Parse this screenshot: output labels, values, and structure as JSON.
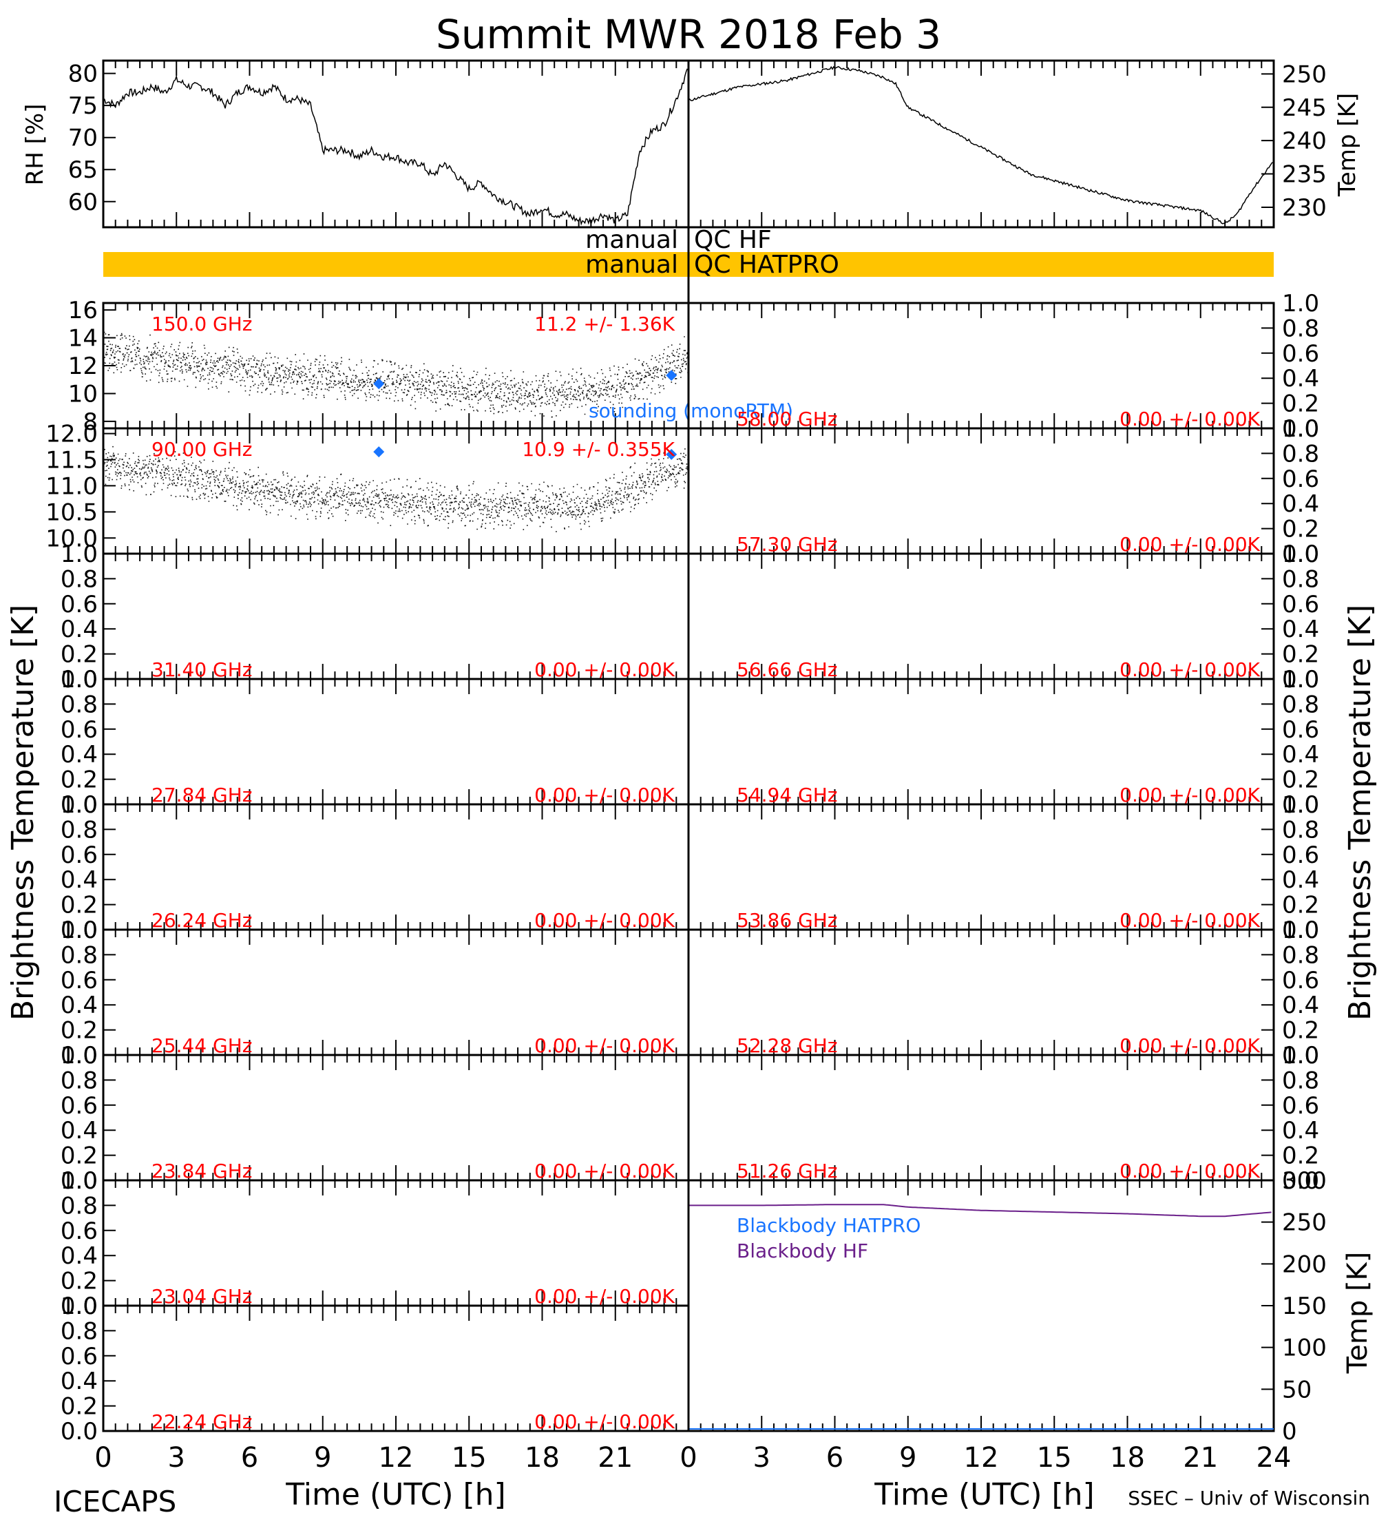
{
  "title": "Summit MWR 2018 Feb  3",
  "footer_left": "ICECAPS",
  "footer_right": "SSEC – Univ of Wisconsin",
  "xlabel": "Time (UTC) [h]",
  "x_ticks": [
    "0",
    "3",
    "6",
    "9",
    "12",
    "15",
    "18",
    "21",
    "24"
  ],
  "colors": {
    "channel_label": "#ff0000",
    "sounding": "#1874ff",
    "blackbody_hf": "#6a1f8a",
    "qc_bar": "#ffc400"
  },
  "qc": {
    "hf_label": "manual QC HF",
    "hatpro_label": "manual QC HATPRO"
  },
  "chart_data": [
    {
      "type": "line",
      "id": "rh",
      "ylabel": "RH [%]",
      "ylim": [
        56,
        82
      ],
      "y_ticks": [
        "60",
        "65",
        "70",
        "75",
        "80"
      ],
      "xlim": [
        0,
        24
      ],
      "series": [
        {
          "x": [
            0,
            0.5,
            1,
            1.5,
            2,
            2.5,
            3,
            3.5,
            4,
            4.5,
            5,
            5.5,
            6,
            6.5,
            7,
            7.5,
            8,
            8.5,
            9,
            9.5,
            10,
            10.5,
            11,
            11.5,
            12,
            12.5,
            13,
            13.5,
            14,
            14.5,
            15,
            15.5,
            16,
            16.5,
            17,
            17.5,
            18,
            18.5,
            19,
            19.5,
            20,
            20.5,
            21,
            21.5,
            22,
            22.5,
            23,
            23.5,
            24
          ],
          "y": [
            76,
            75,
            77,
            77,
            78,
            77,
            79,
            78,
            78,
            77,
            75,
            77,
            78,
            77,
            78,
            76,
            76,
            75,
            68,
            68,
            68,
            67,
            68,
            67,
            67,
            66,
            66,
            64,
            66,
            64,
            62,
            63,
            61,
            60,
            59,
            58,
            59,
            58,
            58,
            57,
            57,
            58,
            57,
            58,
            68,
            71,
            72,
            76,
            81
          ]
        }
      ]
    },
    {
      "type": "line",
      "id": "temp",
      "ylabel": "Temp [K]",
      "ylim": [
        227,
        252
      ],
      "y_ticks": [
        "230",
        "235",
        "240",
        "245",
        "250"
      ],
      "xlim": [
        0,
        24
      ],
      "series": [
        {
          "x": [
            0,
            1,
            2,
            3,
            4,
            5,
            5.5,
            6,
            7,
            8,
            8.5,
            9,
            10,
            11,
            12,
            13,
            14,
            15,
            16,
            17,
            18,
            19,
            20,
            21,
            21.5,
            22,
            22.5,
            23,
            24
          ],
          "y": [
            246,
            247,
            248,
            248.5,
            249,
            250,
            250.5,
            251,
            250.5,
            249.5,
            248.5,
            245,
            243,
            241,
            239,
            237,
            235,
            234,
            233,
            232,
            231,
            230.5,
            230,
            229.5,
            228.5,
            227.5,
            229,
            232,
            237
          ]
        }
      ]
    },
    {
      "type": "scatter",
      "id": "ch150",
      "ylim": [
        7.5,
        16.5
      ],
      "y_ticks": [
        "8",
        "10",
        "12",
        "14",
        "16"
      ],
      "freq_label": "150.0 GHz",
      "stat_label": "11.2 +/-  1.36K",
      "note": "sounding (monoRTM)",
      "sounding": {
        "x": [
          11.3,
          23.3
        ],
        "y": [
          10.7,
          11.3
        ]
      }
    },
    {
      "type": "scatter",
      "id": "ch90",
      "ylim": [
        9.7,
        12.1
      ],
      "y_ticks": [
        "10.0",
        "10.5",
        "11.0",
        "11.5",
        "12.0"
      ],
      "freq_label": "90.00 GHz",
      "stat_label": "10.9 +/- 0.355K",
      "sounding": {
        "x": [
          11.3,
          23.3
        ],
        "y": [
          11.65,
          11.6
        ]
      }
    },
    {
      "type": "line",
      "id": "ch3140",
      "freq_label": "31.40 GHz",
      "stat_label": "0.00 +/-  0.00K"
    },
    {
      "type": "line",
      "id": "ch2784",
      "freq_label": "27.84 GHz",
      "stat_label": "0.00 +/-  0.00K"
    },
    {
      "type": "line",
      "id": "ch2624",
      "freq_label": "26.24 GHz",
      "stat_label": "0.00 +/-  0.00K"
    },
    {
      "type": "line",
      "id": "ch2544",
      "freq_label": "25.44 GHz",
      "stat_label": "0.00 +/-  0.00K"
    },
    {
      "type": "line",
      "id": "ch2384",
      "freq_label": "23.84 GHz",
      "stat_label": "0.00 +/-  0.00K"
    },
    {
      "type": "line",
      "id": "ch2304",
      "freq_label": "23.04 GHz",
      "stat_label": "0.00 +/-  0.00K"
    },
    {
      "type": "line",
      "id": "ch2224",
      "freq_label": "22.24 GHz",
      "stat_label": "0.00 +/-  0.00K"
    },
    {
      "type": "line",
      "id": "ch5800",
      "freq_label": "58.00 GHz",
      "stat_label": "0.00 +/-  0.00K"
    },
    {
      "type": "line",
      "id": "ch5730",
      "freq_label": "57.30 GHz",
      "stat_label": "0.00 +/-  0.00K"
    },
    {
      "type": "line",
      "id": "ch5666",
      "freq_label": "56.66 GHz",
      "stat_label": "0.00 +/-  0.00K"
    },
    {
      "type": "line",
      "id": "ch5494",
      "freq_label": "54.94 GHz",
      "stat_label": "0.00 +/-  0.00K"
    },
    {
      "type": "line",
      "id": "ch5386",
      "freq_label": "53.86 GHz",
      "stat_label": "0.00 +/-  0.00K"
    },
    {
      "type": "line",
      "id": "ch5228",
      "freq_label": "52.28 GHz",
      "stat_label": "0.00 +/-  0.00K"
    },
    {
      "type": "line",
      "id": "ch5126",
      "freq_label": "51.26 GHz",
      "stat_label": "0.00 +/-  0.00K"
    },
    {
      "type": "line",
      "id": "blackbody",
      "ylabel": "Temp [K]",
      "ylim": [
        0,
        300
      ],
      "y_ticks": [
        "0",
        "50",
        "100",
        "150",
        "200",
        "250",
        "300"
      ],
      "legend": [
        "Blackbody HATPRO",
        "Blackbody HF"
      ],
      "series": [
        {
          "name": "Blackbody HF",
          "x": [
            0,
            3,
            6,
            8,
            9,
            12,
            15,
            18,
            21,
            22,
            24
          ],
          "y": [
            270,
            270,
            271,
            271,
            268,
            264,
            262,
            260,
            257,
            257,
            262
          ]
        }
      ]
    }
  ],
  "empty_y_ticks": [
    "0.0",
    "0.2",
    "0.4",
    "0.6",
    "0.8",
    "1.0"
  ],
  "ylabel_bt": "Brightness Temperature [K]"
}
